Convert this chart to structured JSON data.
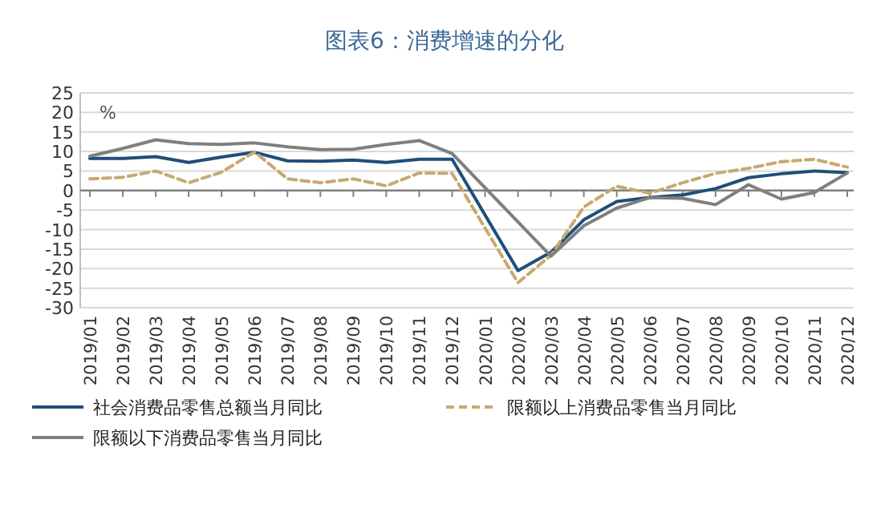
{
  "chart_data": {
    "type": "line",
    "title": "图表6：消费增速的分化",
    "ylabel": "%",
    "categories": [
      "2019/01",
      "2019/02",
      "2019/03",
      "2019/04",
      "2019/05",
      "2019/06",
      "2019/07",
      "2019/08",
      "2019/09",
      "2019/10",
      "2019/11",
      "2019/12",
      "2020/01",
      "2020/02",
      "2020/03",
      "2020/04",
      "2020/05",
      "2020/06",
      "2020/07",
      "2020/08",
      "2020/09",
      "2020/10",
      "2020/11",
      "2020/12"
    ],
    "series": [
      {
        "name": "社会消费品零售总额当月同比",
        "color": "#1f4e79",
        "line_style": "solid",
        "values": [
          8.2,
          8.2,
          8.7,
          7.2,
          8.6,
          9.8,
          7.6,
          7.5,
          7.8,
          7.2,
          8.0,
          8.0,
          null,
          -20.5,
          -15.8,
          -7.5,
          -2.8,
          -1.8,
          -1.1,
          0.5,
          3.3,
          4.3,
          5.0,
          4.6
        ]
      },
      {
        "name": "限额以上消费品零售当月同比",
        "color": "#c8a96e",
        "line_style": "dashed",
        "values": [
          3.0,
          3.4,
          5.0,
          2.0,
          4.7,
          9.9,
          3.0,
          2.0,
          3.0,
          1.2,
          4.5,
          4.4,
          null,
          -23.6,
          -16.6,
          -4.2,
          1.1,
          -0.7,
          2.0,
          4.4,
          5.7,
          7.4,
          8.0,
          6.0
        ]
      },
      {
        "name": "限额以下消费品零售当月同比",
        "color": "#7f7f7f",
        "line_style": "solid",
        "values": [
          8.8,
          10.8,
          13.0,
          12.0,
          11.8,
          12.2,
          11.2,
          10.5,
          10.6,
          11.8,
          12.8,
          9.5,
          null,
          null,
          -16.8,
          -9.0,
          -4.5,
          -1.8,
          -2.0,
          -3.6,
          1.5,
          -2.2,
          -0.5,
          4.5
        ]
      }
    ],
    "ylim": [
      -30,
      25
    ],
    "yticks": [
      -30,
      -25,
      -20,
      -15,
      -10,
      -5,
      0,
      5,
      10,
      15,
      20,
      25
    ],
    "grid": "y",
    "legend": "bottom"
  }
}
